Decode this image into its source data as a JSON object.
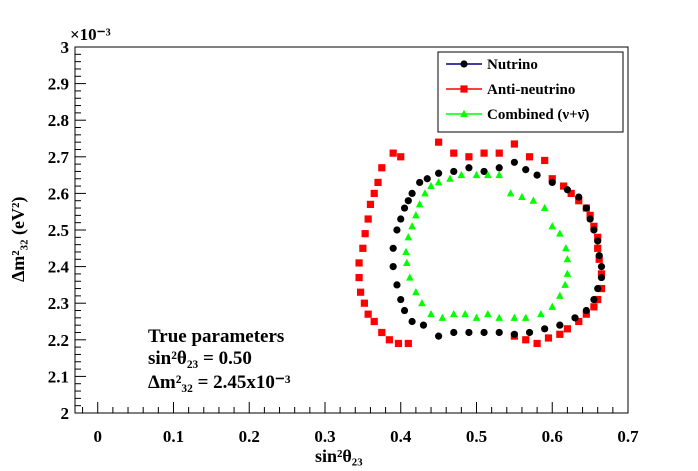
{
  "chart_data": {
    "type": "scatter",
    "title": "",
    "xlabel": "sin²θ₂₃",
    "ylabel": "Δm²₃₂ (eV²)",
    "xlim": [
      -0.03,
      0.7
    ],
    "ylim": [
      2.0,
      3.0
    ],
    "y_scale_label": "×10⁻³",
    "x_ticks": [
      "0",
      "0.1",
      "0.2",
      "0.3",
      "0.4",
      "0.5",
      "0.6",
      "0.7"
    ],
    "y_ticks": [
      "2",
      "2.1",
      "2.2",
      "2.3",
      "2.4",
      "2.5",
      "2.6",
      "2.7",
      "2.8",
      "2.9",
      "3"
    ],
    "grid": false,
    "legend_position": "top-right",
    "series": [
      {
        "name": "Nutrino",
        "color": "#000080",
        "marker_color": "#000000",
        "marker": "circle",
        "points": [
          [
            0.45,
            2.21
          ],
          [
            0.47,
            2.22
          ],
          [
            0.49,
            2.22
          ],
          [
            0.51,
            2.22
          ],
          [
            0.53,
            2.22
          ],
          [
            0.55,
            2.215
          ],
          [
            0.57,
            2.22
          ],
          [
            0.59,
            2.23
          ],
          [
            0.61,
            2.24
          ],
          [
            0.63,
            2.26
          ],
          [
            0.645,
            2.28
          ],
          [
            0.655,
            2.31
          ],
          [
            0.66,
            2.34
          ],
          [
            0.665,
            2.37
          ],
          [
            0.665,
            2.4
          ],
          [
            0.662,
            2.43
          ],
          [
            0.66,
            2.47
          ],
          [
            0.655,
            2.5
          ],
          [
            0.65,
            2.53
          ],
          [
            0.645,
            2.56
          ],
          [
            0.635,
            2.59
          ],
          [
            0.62,
            2.61
          ],
          [
            0.6,
            2.63
          ],
          [
            0.58,
            2.65
          ],
          [
            0.565,
            2.665
          ],
          [
            0.55,
            2.685
          ],
          [
            0.53,
            2.67
          ],
          [
            0.51,
            2.66
          ],
          [
            0.49,
            2.67
          ],
          [
            0.47,
            2.66
          ],
          [
            0.45,
            2.655
          ],
          [
            0.435,
            2.64
          ],
          [
            0.425,
            2.63
          ],
          [
            0.415,
            2.6
          ],
          [
            0.41,
            2.58
          ],
          [
            0.405,
            2.56
          ],
          [
            0.4,
            2.53
          ],
          [
            0.395,
            2.5
          ],
          [
            0.39,
            2.45
          ],
          [
            0.39,
            2.4
          ],
          [
            0.395,
            2.35
          ],
          [
            0.4,
            2.31
          ],
          [
            0.405,
            2.28
          ],
          [
            0.415,
            2.25
          ],
          [
            0.43,
            2.24
          ]
        ]
      },
      {
        "name": "Anti-neutrino",
        "color": "#ff0000",
        "marker_color": "#ff0000",
        "marker": "square",
        "points": [
          [
            0.39,
            2.71
          ],
          [
            0.4,
            2.7
          ],
          [
            0.375,
            2.67
          ],
          [
            0.37,
            2.63
          ],
          [
            0.365,
            2.6
          ],
          [
            0.36,
            2.57
          ],
          [
            0.357,
            2.53
          ],
          [
            0.353,
            2.49
          ],
          [
            0.35,
            2.45
          ],
          [
            0.345,
            2.41
          ],
          [
            0.345,
            2.37
          ],
          [
            0.347,
            2.33
          ],
          [
            0.352,
            2.3
          ],
          [
            0.357,
            2.27
          ],
          [
            0.365,
            2.25
          ],
          [
            0.375,
            2.22
          ],
          [
            0.385,
            2.2
          ],
          [
            0.397,
            2.19
          ],
          [
            0.41,
            2.19
          ],
          [
            0.45,
            2.74
          ],
          [
            0.47,
            2.71
          ],
          [
            0.49,
            2.7
          ],
          [
            0.51,
            2.71
          ],
          [
            0.53,
            2.71
          ],
          [
            0.55,
            2.735
          ],
          [
            0.57,
            2.7
          ],
          [
            0.59,
            2.69
          ],
          [
            0.6,
            2.64
          ],
          [
            0.615,
            2.62
          ],
          [
            0.625,
            2.6
          ],
          [
            0.635,
            2.58
          ],
          [
            0.645,
            2.56
          ],
          [
            0.65,
            2.54
          ],
          [
            0.655,
            2.51
          ],
          [
            0.66,
            2.48
          ],
          [
            0.66,
            2.45
          ],
          [
            0.662,
            2.42
          ],
          [
            0.665,
            2.38
          ],
          [
            0.665,
            2.34
          ],
          [
            0.66,
            2.31
          ],
          [
            0.655,
            2.29
          ],
          [
            0.645,
            2.27
          ],
          [
            0.635,
            2.25
          ],
          [
            0.62,
            2.23
          ],
          [
            0.61,
            2.215
          ],
          [
            0.595,
            2.205
          ],
          [
            0.58,
            2.19
          ],
          [
            0.565,
            2.2
          ],
          [
            0.55,
            2.21
          ]
        ]
      },
      {
        "name": "Combined (ν+ν̄)",
        "color": "#00ff00",
        "marker_color": "#00ff00",
        "marker": "triangle",
        "points": [
          [
            0.45,
            2.63
          ],
          [
            0.465,
            2.64
          ],
          [
            0.48,
            2.65
          ],
          [
            0.5,
            2.65
          ],
          [
            0.515,
            2.65
          ],
          [
            0.53,
            2.65
          ],
          [
            0.545,
            2.6
          ],
          [
            0.56,
            2.59
          ],
          [
            0.575,
            2.58
          ],
          [
            0.59,
            2.56
          ],
          [
            0.6,
            2.51
          ],
          [
            0.61,
            2.49
          ],
          [
            0.618,
            2.45
          ],
          [
            0.62,
            2.42
          ],
          [
            0.62,
            2.38
          ],
          [
            0.617,
            2.35
          ],
          [
            0.61,
            2.32
          ],
          [
            0.6,
            2.29
          ],
          [
            0.585,
            2.27
          ],
          [
            0.565,
            2.26
          ],
          [
            0.55,
            2.26
          ],
          [
            0.53,
            2.26
          ],
          [
            0.515,
            2.27
          ],
          [
            0.5,
            2.26
          ],
          [
            0.485,
            2.27
          ],
          [
            0.47,
            2.27
          ],
          [
            0.455,
            2.26
          ],
          [
            0.44,
            2.27
          ],
          [
            0.428,
            2.3
          ],
          [
            0.42,
            2.33
          ],
          [
            0.412,
            2.37
          ],
          [
            0.408,
            2.41
          ],
          [
            0.407,
            2.44
          ],
          [
            0.41,
            2.48
          ],
          [
            0.415,
            2.51
          ],
          [
            0.42,
            2.54
          ],
          [
            0.425,
            2.57
          ],
          [
            0.432,
            2.6
          ],
          [
            0.44,
            2.62
          ]
        ]
      }
    ],
    "annotation": {
      "line1": "True parameters",
      "line2": "sin²θ₂₃ = 0.50",
      "line3": "Δm²₃₂ = 2.45x10⁻³"
    }
  }
}
